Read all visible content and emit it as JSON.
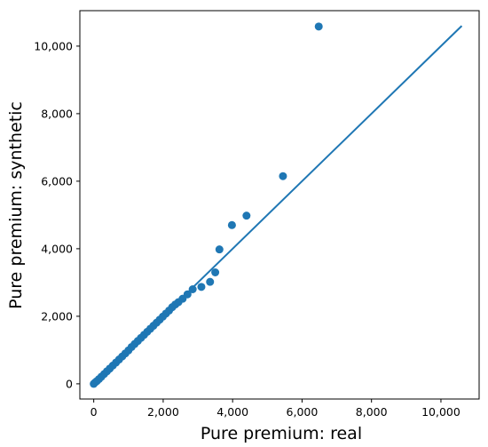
{
  "chart_data": {
    "type": "scatter",
    "title": "",
    "xlabel": "Pure premium: real",
    "ylabel": "Pure premium: synthetic",
    "xlim": [
      -400,
      11100
    ],
    "ylim": [
      -450,
      11050
    ],
    "xticks": [
      0,
      2000,
      4000,
      6000,
      8000,
      10000
    ],
    "yticks": [
      0,
      2000,
      4000,
      6000,
      8000,
      10000
    ],
    "xtick_labels": [
      "0",
      "2,000",
      "4,000",
      "6,000",
      "8,000",
      "10,000"
    ],
    "ytick_labels": [
      "0",
      "2,000",
      "4,000",
      "6,000",
      "8,000",
      "10,000"
    ],
    "grid": false,
    "legend": "none",
    "series": [
      {
        "type": "scatter",
        "color": "#1f77b4",
        "points": [
          [
            0,
            0
          ],
          [
            40,
            40
          ],
          [
            90,
            80
          ],
          [
            150,
            140
          ],
          [
            220,
            210
          ],
          [
            300,
            290
          ],
          [
            380,
            370
          ],
          [
            460,
            450
          ],
          [
            550,
            540
          ],
          [
            640,
            630
          ],
          [
            730,
            720
          ],
          [
            820,
            810
          ],
          [
            910,
            900
          ],
          [
            1000,
            990
          ],
          [
            1090,
            1090
          ],
          [
            1180,
            1180
          ],
          [
            1270,
            1270
          ],
          [
            1360,
            1360
          ],
          [
            1450,
            1450
          ],
          [
            1540,
            1540
          ],
          [
            1630,
            1630
          ],
          [
            1720,
            1720
          ],
          [
            1810,
            1810
          ],
          [
            1900,
            1900
          ],
          [
            1990,
            1990
          ],
          [
            2080,
            2080
          ],
          [
            2170,
            2170
          ],
          [
            2260,
            2270
          ],
          [
            2350,
            2350
          ],
          [
            2440,
            2420
          ],
          [
            2560,
            2520
          ],
          [
            2700,
            2650
          ],
          [
            2850,
            2800
          ],
          [
            3100,
            2870
          ],
          [
            3350,
            3020
          ],
          [
            3500,
            3300
          ],
          [
            3620,
            3980
          ],
          [
            3980,
            4700
          ],
          [
            4400,
            4980
          ],
          [
            5450,
            6150
          ],
          [
            6480,
            10580
          ]
        ]
      },
      {
        "type": "line",
        "color": "#1f77b4",
        "points": [
          [
            0,
            0
          ],
          [
            10600,
            10600
          ]
        ]
      }
    ]
  }
}
